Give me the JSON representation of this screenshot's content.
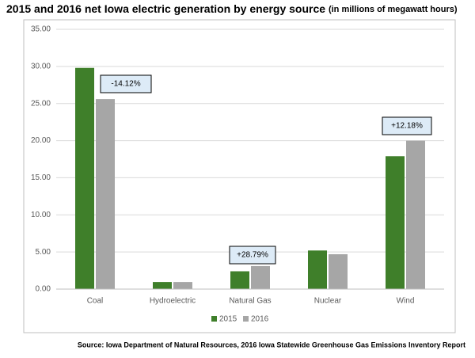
{
  "chart_data": {
    "type": "bar",
    "title": "2015 and 2016 net Iowa electric generation by energy source",
    "subtitle": "(in millions of megawatt hours)",
    "source": "Source: Iowa Department of Natural Resources, 2016 Iowa Statewide Greenhouse Gas Emissions Inventory Report",
    "categories": [
      "Coal",
      "Hydroelectric",
      "Natural Gas",
      "Nuclear",
      "Wind"
    ],
    "series": [
      {
        "name": "2015",
        "color": "#3f7f2a",
        "values": [
          29.8,
          0.95,
          2.4,
          5.2,
          17.9
        ]
      },
      {
        "name": "2016",
        "color": "#a6a6a6",
        "values": [
          25.6,
          0.95,
          3.1,
          4.7,
          20.0
        ]
      }
    ],
    "annotations": [
      "-14.12%",
      "+28.79%",
      "+12.18%"
    ],
    "ylim": [
      0,
      35
    ],
    "yticks": [
      {
        "value": 0,
        "label": "0.00"
      },
      {
        "value": 5,
        "label": "5.00"
      },
      {
        "value": 10,
        "label": "10.00"
      },
      {
        "value": 15,
        "label": "15.00"
      },
      {
        "value": 20,
        "label": "20.00"
      },
      {
        "value": 25,
        "label": "25.00"
      },
      {
        "value": 30,
        "label": "30.00"
      },
      {
        "value": 35,
        "label": "35.00"
      }
    ],
    "grid": true,
    "legend": "bottom"
  }
}
